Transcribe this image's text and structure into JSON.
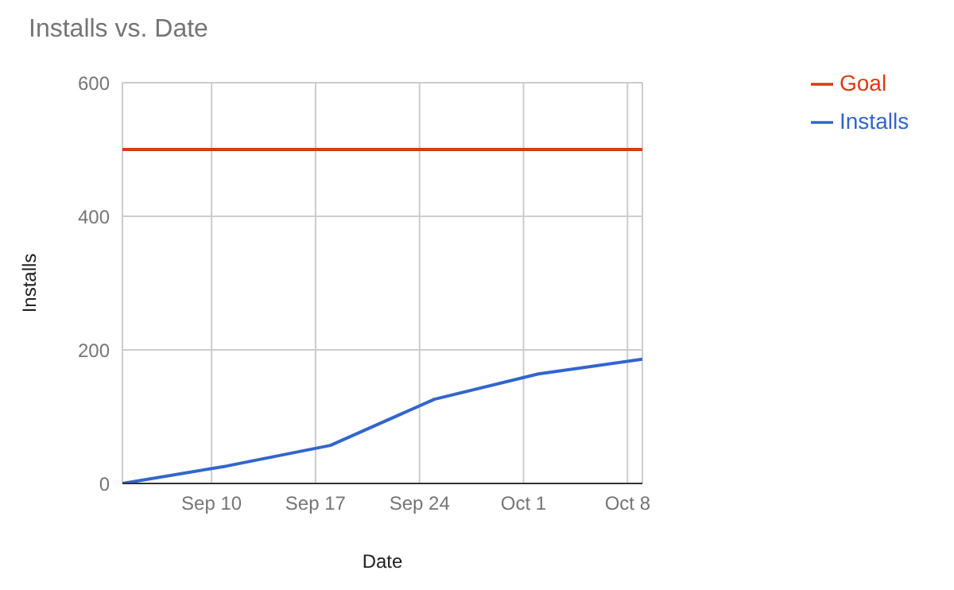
{
  "chart_data": {
    "type": "line",
    "title": "Installs vs. Date",
    "xlabel": "Date",
    "ylabel": "Installs",
    "x": [
      "--09-04",
      "--09-11",
      "--09-18",
      "--09-25",
      "--10-02",
      "--10-09"
    ],
    "series": [
      {
        "name": "Installs",
        "color": "#3366cc",
        "values": [
          0,
          26,
          57,
          126,
          164,
          186
        ]
      },
      {
        "name": "Goal",
        "color": "#dc3912",
        "values": [
          500,
          500,
          500,
          500,
          500,
          500
        ]
      }
    ],
    "xlim": [
      "--09-04",
      "--10-09"
    ],
    "xticks": [
      {
        "value": "--09-10",
        "label": "Sep 10"
      },
      {
        "value": "--09-17",
        "label": "Sep 17"
      },
      {
        "value": "--09-24",
        "label": "Sep 24"
      },
      {
        "value": "--10-01",
        "label": "Oct 1"
      },
      {
        "value": "--10-08",
        "label": "Oct 8"
      }
    ],
    "ylim": [
      0,
      600
    ],
    "yticks": [
      0,
      200,
      400,
      600
    ],
    "grid": true,
    "legend": "right",
    "marker": "none",
    "line_style": "solid"
  }
}
